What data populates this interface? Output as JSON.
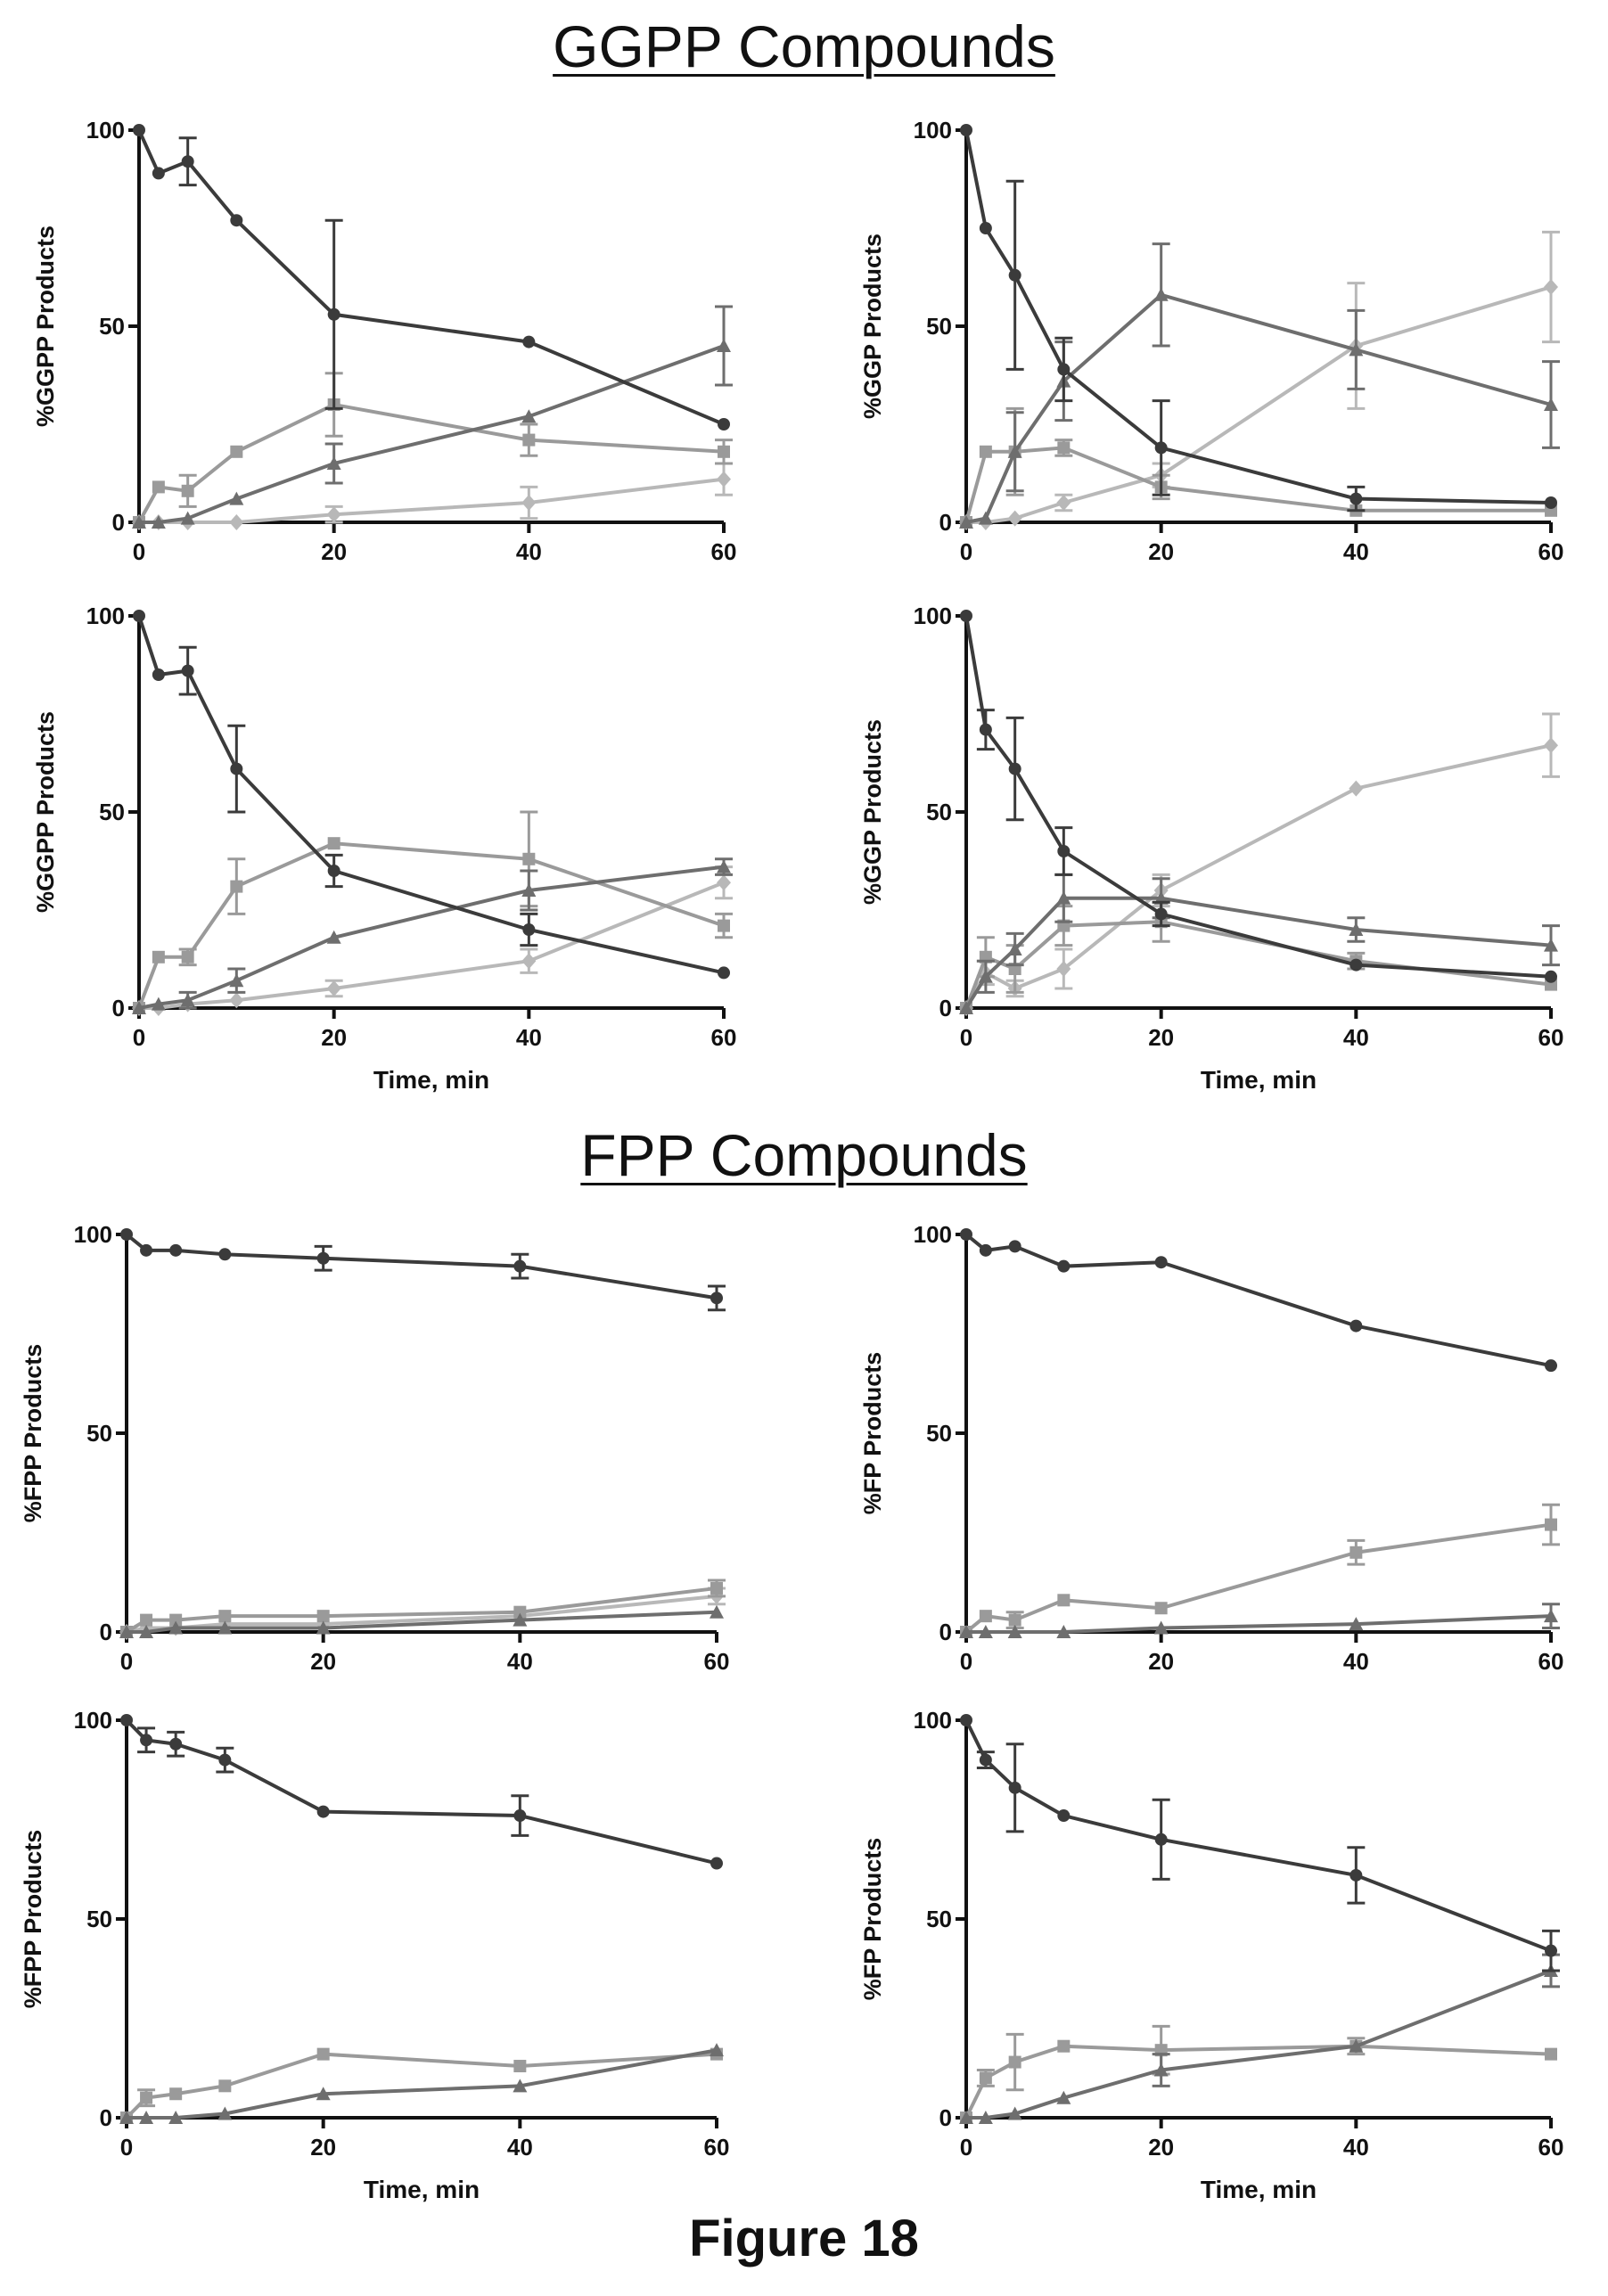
{
  "titles": {
    "ggpp": "GGPP Compounds",
    "fpp": "FPP Compounds",
    "figure": "Figure 18"
  },
  "colors": {
    "dark": "#3b3b3b",
    "mid": "#6e6e6e",
    "light": "#9a9a9a",
    "lighter": "#b8b8b8"
  },
  "chart_data": [
    {
      "id": "ggpp-a",
      "type": "line",
      "group": "GGPP Compounds",
      "ylabel": "%GGPP Products",
      "xlabel": "",
      "xlim": [
        0,
        60
      ],
      "ylim": [
        0,
        100
      ],
      "xticks": [
        0,
        20,
        40,
        60
      ],
      "yticks": [
        0,
        50,
        100
      ],
      "series": [
        {
          "marker": "circle",
          "color": "#3b3b3b",
          "x": [
            0,
            2,
            5,
            10,
            20,
            40,
            60
          ],
          "y": [
            100,
            89,
            92,
            77,
            53,
            46,
            25
          ],
          "err": [
            0,
            1,
            6,
            1,
            24,
            1,
            1
          ]
        },
        {
          "marker": "triangle",
          "color": "#6e6e6e",
          "x": [
            0,
            2,
            5,
            10,
            20,
            40,
            60
          ],
          "y": [
            0,
            0,
            1,
            6,
            15,
            27,
            45
          ],
          "err": [
            0,
            0,
            1,
            1,
            5,
            1,
            10
          ]
        },
        {
          "marker": "square",
          "color": "#9a9a9a",
          "x": [
            0,
            2,
            5,
            10,
            20,
            40,
            60
          ],
          "y": [
            0,
            9,
            8,
            18,
            30,
            21,
            18
          ],
          "err": [
            0,
            1,
            4,
            1,
            8,
            4,
            3
          ]
        },
        {
          "marker": "diamond",
          "color": "#b8b8b8",
          "x": [
            0,
            2,
            5,
            10,
            20,
            40,
            60
          ],
          "y": [
            0,
            0,
            0,
            0,
            2,
            5,
            11
          ],
          "err": [
            0,
            0,
            0,
            1,
            2,
            4,
            4
          ]
        }
      ]
    },
    {
      "id": "ggpp-b",
      "type": "line",
      "group": "GGPP Compounds",
      "ylabel": "%GGP Products",
      "xlabel": "",
      "xlim": [
        0,
        60
      ],
      "ylim": [
        0,
        100
      ],
      "xticks": [
        0,
        20,
        40,
        60
      ],
      "yticks": [
        0,
        50,
        100
      ],
      "series": [
        {
          "marker": "circle",
          "color": "#3b3b3b",
          "x": [
            0,
            2,
            5,
            10,
            20,
            40,
            60
          ],
          "y": [
            100,
            75,
            63,
            39,
            19,
            6,
            5
          ],
          "err": [
            0,
            1,
            24,
            8,
            12,
            3,
            1
          ]
        },
        {
          "marker": "triangle",
          "color": "#6e6e6e",
          "x": [
            0,
            2,
            5,
            10,
            20,
            40,
            60
          ],
          "y": [
            0,
            1,
            18,
            36,
            58,
            44,
            30
          ],
          "err": [
            0,
            0,
            10,
            10,
            13,
            10,
            11
          ]
        },
        {
          "marker": "square",
          "color": "#9a9a9a",
          "x": [
            0,
            2,
            5,
            10,
            20,
            40,
            60
          ],
          "y": [
            0,
            18,
            18,
            19,
            9,
            3,
            3
          ],
          "err": [
            0,
            1,
            11,
            2,
            3,
            1,
            1
          ]
        },
        {
          "marker": "diamond",
          "color": "#b8b8b8",
          "x": [
            0,
            2,
            5,
            10,
            20,
            40,
            60
          ],
          "y": [
            0,
            0,
            1,
            5,
            12,
            45,
            60
          ],
          "err": [
            0,
            0,
            1,
            2,
            3,
            16,
            14
          ]
        }
      ]
    },
    {
      "id": "ggpp-c",
      "type": "line",
      "group": "GGPP Compounds",
      "ylabel": "%GGPP Products",
      "xlabel": "Time, min",
      "xlim": [
        0,
        60
      ],
      "ylim": [
        0,
        100
      ],
      "xticks": [
        0,
        20,
        40,
        60
      ],
      "yticks": [
        0,
        50,
        100
      ],
      "series": [
        {
          "marker": "circle",
          "color": "#3b3b3b",
          "x": [
            0,
            2,
            5,
            10,
            20,
            40,
            60
          ],
          "y": [
            100,
            85,
            86,
            61,
            35,
            20,
            9
          ],
          "err": [
            0,
            1,
            6,
            11,
            4,
            4,
            1
          ]
        },
        {
          "marker": "triangle",
          "color": "#6e6e6e",
          "x": [
            0,
            2,
            5,
            10,
            20,
            40,
            60
          ],
          "y": [
            0,
            1,
            2,
            7,
            18,
            30,
            36
          ],
          "err": [
            0,
            0,
            2,
            3,
            1,
            5,
            2
          ]
        },
        {
          "marker": "square",
          "color": "#9a9a9a",
          "x": [
            0,
            2,
            5,
            10,
            20,
            40,
            60
          ],
          "y": [
            0,
            13,
            13,
            31,
            42,
            38,
            21
          ],
          "err": [
            0,
            1,
            2,
            7,
            1,
            12,
            3
          ]
        },
        {
          "marker": "diamond",
          "color": "#b8b8b8",
          "x": [
            0,
            2,
            5,
            10,
            20,
            40,
            60
          ],
          "y": [
            0,
            0,
            1,
            2,
            5,
            12,
            32
          ],
          "err": [
            0,
            0,
            0,
            1,
            2,
            3,
            4
          ]
        }
      ]
    },
    {
      "id": "ggpp-d",
      "type": "line",
      "group": "GGPP Compounds",
      "ylabel": "%GGP Products",
      "xlabel": "Time, min",
      "xlim": [
        0,
        60
      ],
      "ylim": [
        0,
        100
      ],
      "xticks": [
        0,
        20,
        40,
        60
      ],
      "yticks": [
        0,
        50,
        100
      ],
      "series": [
        {
          "marker": "circle",
          "color": "#3b3b3b",
          "x": [
            0,
            2,
            5,
            10,
            20,
            40,
            60
          ],
          "y": [
            100,
            71,
            61,
            40,
            24,
            11,
            8
          ],
          "err": [
            0,
            5,
            13,
            6,
            3,
            1,
            1
          ]
        },
        {
          "marker": "triangle",
          "color": "#6e6e6e",
          "x": [
            0,
            2,
            5,
            10,
            20,
            40,
            60
          ],
          "y": [
            0,
            8,
            15,
            28,
            28,
            20,
            16
          ],
          "err": [
            0,
            4,
            4,
            6,
            5,
            3,
            5
          ]
        },
        {
          "marker": "square",
          "color": "#9a9a9a",
          "x": [
            0,
            2,
            5,
            10,
            20,
            40,
            60
          ],
          "y": [
            0,
            13,
            10,
            21,
            22,
            12,
            6
          ],
          "err": [
            0,
            5,
            6,
            5,
            5,
            2,
            1
          ]
        },
        {
          "marker": "diamond",
          "color": "#b8b8b8",
          "x": [
            0,
            2,
            5,
            10,
            20,
            40,
            60
          ],
          "y": [
            0,
            9,
            5,
            10,
            30,
            56,
            67
          ],
          "err": [
            0,
            3,
            2,
            5,
            4,
            1,
            8
          ]
        }
      ]
    },
    {
      "id": "fpp-a",
      "type": "line",
      "group": "FPP Compounds",
      "ylabel": "%FPP Products",
      "xlabel": "",
      "xlim": [
        0,
        60
      ],
      "ylim": [
        0,
        100
      ],
      "xticks": [
        0,
        20,
        40,
        60
      ],
      "yticks": [
        0,
        50,
        100
      ],
      "series": [
        {
          "marker": "circle",
          "color": "#3b3b3b",
          "x": [
            0,
            2,
            5,
            10,
            20,
            40,
            60
          ],
          "y": [
            100,
            96,
            96,
            95,
            94,
            92,
            84
          ],
          "err": [
            0,
            1,
            1,
            1,
            3,
            3,
            3
          ]
        },
        {
          "marker": "triangle",
          "color": "#6e6e6e",
          "x": [
            0,
            2,
            5,
            10,
            20,
            40,
            60
          ],
          "y": [
            0,
            0,
            1,
            1,
            1,
            3,
            5
          ],
          "err": [
            0,
            0,
            0,
            0,
            0,
            1,
            1
          ]
        },
        {
          "marker": "square",
          "color": "#9a9a9a",
          "x": [
            0,
            2,
            5,
            10,
            20,
            40,
            60
          ],
          "y": [
            0,
            3,
            3,
            4,
            4,
            5,
            11
          ],
          "err": [
            0,
            1,
            1,
            1,
            1,
            1,
            2
          ]
        },
        {
          "marker": "diamond",
          "color": "#b8b8b8",
          "x": [
            0,
            2,
            5,
            10,
            20,
            40,
            60
          ],
          "y": [
            0,
            1,
            1,
            2,
            2,
            4,
            9
          ],
          "err": [
            0,
            0,
            0,
            1,
            1,
            1,
            2
          ]
        }
      ]
    },
    {
      "id": "fpp-b",
      "type": "line",
      "group": "FPP Compounds",
      "ylabel": "%FP Products",
      "xlabel": "",
      "xlim": [
        0,
        60
      ],
      "ylim": [
        0,
        100
      ],
      "xticks": [
        0,
        20,
        40,
        60
      ],
      "yticks": [
        0,
        50,
        100
      ],
      "series": [
        {
          "marker": "circle",
          "color": "#3b3b3b",
          "x": [
            0,
            2,
            5,
            10,
            20,
            40,
            60
          ],
          "y": [
            100,
            96,
            97,
            92,
            93,
            77,
            67
          ],
          "err": [
            0,
            1,
            1,
            1,
            1,
            1,
            1
          ]
        },
        {
          "marker": "triangle",
          "color": "#6e6e6e",
          "x": [
            0,
            2,
            5,
            10,
            20,
            40,
            60
          ],
          "y": [
            0,
            0,
            0,
            0,
            1,
            2,
            4
          ],
          "err": [
            0,
            0,
            0,
            0,
            0,
            1,
            3
          ]
        },
        {
          "marker": "square",
          "color": "#9a9a9a",
          "x": [
            0,
            2,
            5,
            10,
            20,
            40,
            60
          ],
          "y": [
            0,
            4,
            3,
            8,
            6,
            20,
            27
          ],
          "err": [
            0,
            1,
            2,
            1,
            1,
            3,
            5
          ]
        }
      ]
    },
    {
      "id": "fpp-c",
      "type": "line",
      "group": "FPP Compounds",
      "ylabel": "%FPP Products",
      "xlabel": "Time, min",
      "xlim": [
        0,
        60
      ],
      "ylim": [
        0,
        100
      ],
      "xticks": [
        0,
        20,
        40,
        60
      ],
      "yticks": [
        0,
        50,
        100
      ],
      "series": [
        {
          "marker": "circle",
          "color": "#3b3b3b",
          "x": [
            0,
            2,
            5,
            10,
            20,
            40,
            60
          ],
          "y": [
            100,
            95,
            94,
            90,
            77,
            76,
            64
          ],
          "err": [
            0,
            3,
            3,
            3,
            1,
            5,
            1
          ]
        },
        {
          "marker": "triangle",
          "color": "#6e6e6e",
          "x": [
            0,
            2,
            5,
            10,
            20,
            40,
            60
          ],
          "y": [
            0,
            0,
            0,
            1,
            6,
            8,
            17
          ],
          "err": [
            0,
            0,
            0,
            0,
            1,
            1,
            1
          ]
        },
        {
          "marker": "square",
          "color": "#9a9a9a",
          "x": [
            0,
            2,
            5,
            10,
            20,
            40,
            60
          ],
          "y": [
            0,
            5,
            6,
            8,
            16,
            13,
            16
          ],
          "err": [
            0,
            2,
            1,
            1,
            1,
            1,
            1
          ]
        }
      ]
    },
    {
      "id": "fpp-d",
      "type": "line",
      "group": "FPP Compounds",
      "ylabel": "%FP Products",
      "xlabel": "Time, min",
      "xlim": [
        0,
        60
      ],
      "ylim": [
        0,
        100
      ],
      "xticks": [
        0,
        20,
        40,
        60
      ],
      "yticks": [
        0,
        50,
        100
      ],
      "series": [
        {
          "marker": "circle",
          "color": "#3b3b3b",
          "x": [
            0,
            2,
            5,
            10,
            20,
            40,
            60
          ],
          "y": [
            100,
            90,
            83,
            76,
            70,
            61,
            42
          ],
          "err": [
            0,
            2,
            11,
            1,
            10,
            7,
            5
          ]
        },
        {
          "marker": "triangle",
          "color": "#6e6e6e",
          "x": [
            0,
            2,
            5,
            10,
            20,
            40,
            60
          ],
          "y": [
            0,
            0,
            1,
            5,
            12,
            18,
            37
          ],
          "err": [
            0,
            0,
            1,
            1,
            4,
            1,
            4
          ]
        },
        {
          "marker": "square",
          "color": "#9a9a9a",
          "x": [
            0,
            2,
            5,
            10,
            20,
            40,
            60
          ],
          "y": [
            0,
            10,
            14,
            18,
            17,
            18,
            16
          ],
          "err": [
            0,
            2,
            7,
            1,
            6,
            2,
            1
          ]
        }
      ]
    }
  ]
}
